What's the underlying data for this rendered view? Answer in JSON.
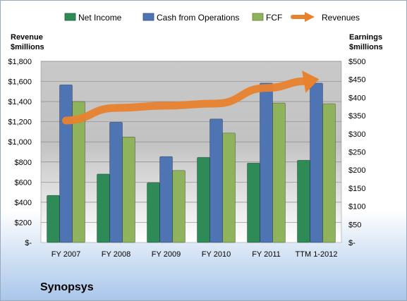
{
  "company_name": "Synopsys",
  "chart_data": {
    "type": "bar",
    "categories": [
      "FY 2007",
      "FY 2008",
      "FY 2009",
      "FY 2010",
      "FY 2011",
      "TTM 1-2012"
    ],
    "series": [
      {
        "name": "Net Income",
        "axis": "right",
        "color": "#2e8b57",
        "values": [
          130,
          189,
          165,
          235,
          219,
          227
        ]
      },
      {
        "name": "Cash from Operations",
        "axis": "right",
        "color": "#4f74b3",
        "values": [
          435,
          332,
          237,
          341,
          440,
          440
        ]
      },
      {
        "name": "FCF",
        "axis": "right",
        "color": "#8fb35c",
        "values": [
          389,
          291,
          199,
          302,
          385,
          383
        ]
      },
      {
        "name": "Revenues",
        "axis": "left",
        "type": "line",
        "color": "#e8822e",
        "values": [
          1212,
          1337,
          1360,
          1381,
          1536,
          1618
        ]
      }
    ],
    "left_axis": {
      "title_lines": [
        "Revenue",
        "$millions"
      ],
      "range": [
        0,
        1800
      ],
      "tick_labels": [
        "$-",
        "$200",
        "$400",
        "$600",
        "$800",
        "$1,000",
        "$1,200",
        "$1,400",
        "$1,600",
        "$1,800"
      ]
    },
    "right_axis": {
      "title_lines": [
        "Earnings",
        "$millions"
      ],
      "range": [
        0,
        500
      ],
      "tick_labels": [
        "$-",
        "$50",
        "$100",
        "$150",
        "$200",
        "$250",
        "$300",
        "$350",
        "$400",
        "$450",
        "$500"
      ]
    },
    "legend": {
      "placement": "top",
      "entries": [
        "Net Income",
        "Cash from Operations",
        "FCF",
        "Revenues"
      ]
    },
    "grid": true
  }
}
